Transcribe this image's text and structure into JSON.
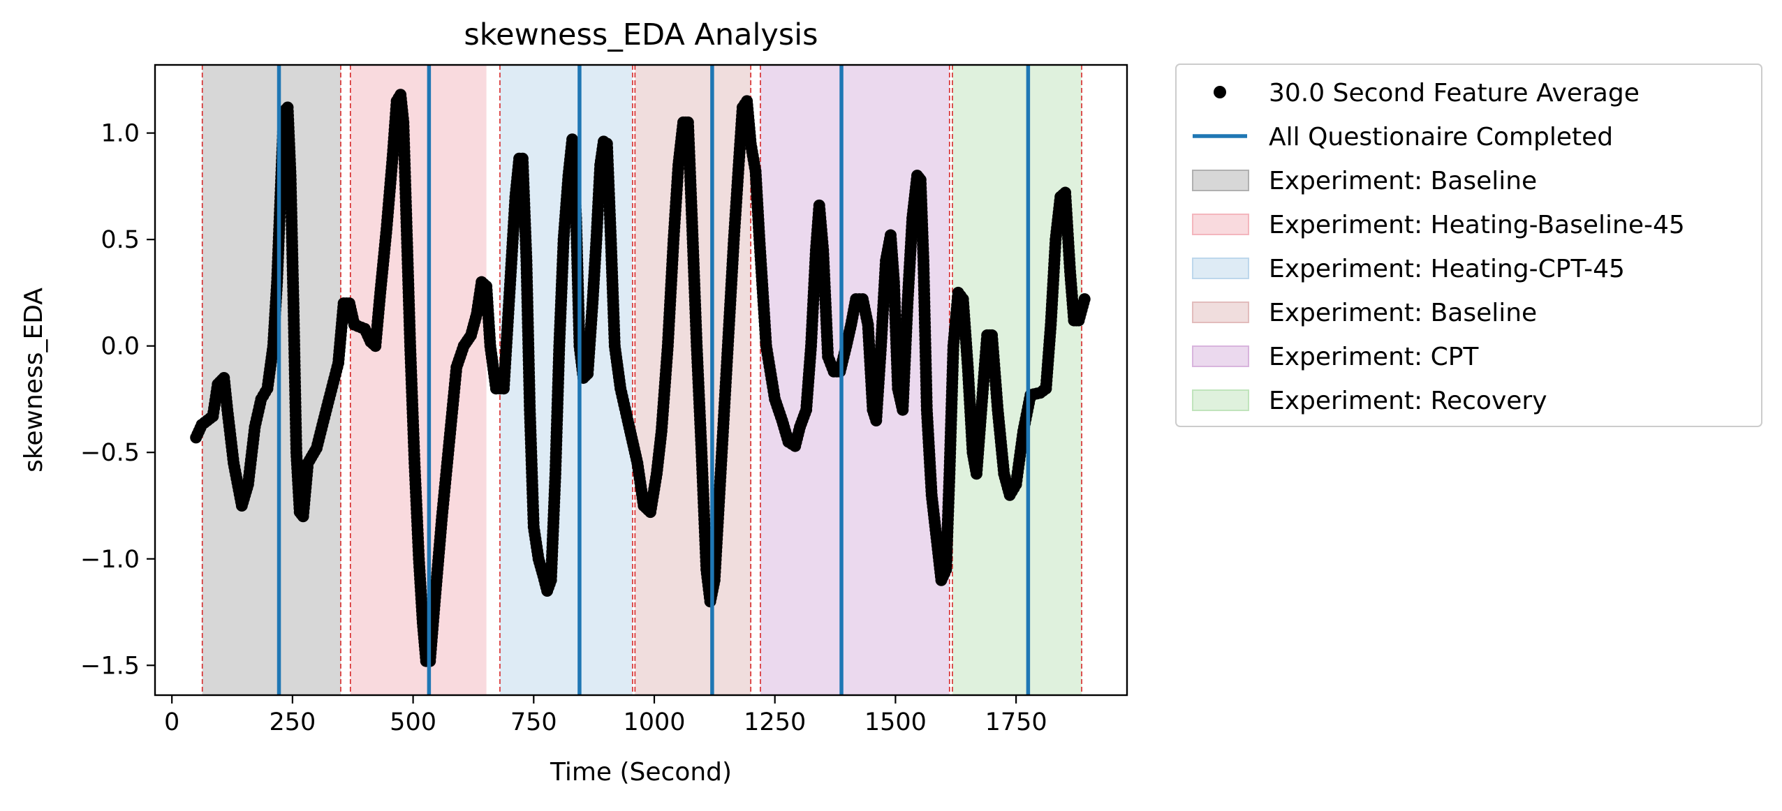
{
  "chart_data": {
    "type": "scatter",
    "title": "skewness_EDA Analysis",
    "xlabel": "Time (Second)",
    "ylabel": "skewness_EDA",
    "xlim": [
      -35,
      1980
    ],
    "ylim": [
      -1.64,
      1.32
    ],
    "xticks": [
      0,
      250,
      500,
      750,
      1000,
      1250,
      1500,
      1750
    ],
    "xtick_labels": [
      "0",
      "250",
      "500",
      "750",
      "1000",
      "1250",
      "1500",
      "1750"
    ],
    "yticks": [
      -1.5,
      -1.0,
      -0.5,
      0.0,
      0.5,
      1.0
    ],
    "ytick_labels": [
      "−1.5",
      "−1.0",
      "−0.5",
      "0.0",
      "0.5",
      "1.0"
    ],
    "grid": false,
    "legend_position": "outside-right",
    "point_color": "#000000",
    "series": [
      {
        "name": "30.0 Second Feature Average",
        "type": "scatter",
        "keypoints": [
          [
            50,
            -0.43
          ],
          [
            62,
            -0.37
          ],
          [
            85,
            -0.33
          ],
          [
            95,
            -0.18
          ],
          [
            108,
            -0.15
          ],
          [
            115,
            -0.3
          ],
          [
            128,
            -0.55
          ],
          [
            145,
            -0.75
          ],
          [
            158,
            -0.65
          ],
          [
            172,
            -0.38
          ],
          [
            185,
            -0.25
          ],
          [
            198,
            -0.2
          ],
          [
            210,
            0.0
          ],
          [
            218,
            0.3
          ],
          [
            225,
            0.7
          ],
          [
            232,
            1.1
          ],
          [
            240,
            1.12
          ],
          [
            246,
            0.8
          ],
          [
            252,
            0.2
          ],
          [
            258,
            -0.5
          ],
          [
            265,
            -0.78
          ],
          [
            272,
            -0.8
          ],
          [
            282,
            -0.55
          ],
          [
            300,
            -0.48
          ],
          [
            320,
            -0.3
          ],
          [
            345,
            -0.08
          ],
          [
            356,
            0.2
          ],
          [
            368,
            0.2
          ],
          [
            378,
            0.1
          ],
          [
            400,
            0.08
          ],
          [
            412,
            0.02
          ],
          [
            422,
            0.0
          ],
          [
            432,
            0.25
          ],
          [
            445,
            0.55
          ],
          [
            458,
            0.9
          ],
          [
            466,
            1.15
          ],
          [
            474,
            1.18
          ],
          [
            480,
            1.05
          ],
          [
            486,
            0.6
          ],
          [
            494,
            0.0
          ],
          [
            503,
            -0.55
          ],
          [
            512,
            -1.0
          ],
          [
            520,
            -1.3
          ],
          [
            527,
            -1.48
          ],
          [
            535,
            -1.48
          ],
          [
            545,
            -1.2
          ],
          [
            560,
            -0.8
          ],
          [
            575,
            -0.45
          ],
          [
            590,
            -0.1
          ],
          [
            605,
            0.0
          ],
          [
            620,
            0.05
          ],
          [
            632,
            0.15
          ],
          [
            642,
            0.3
          ],
          [
            652,
            0.28
          ],
          [
            660,
            0.0
          ],
          [
            672,
            -0.2
          ],
          [
            688,
            -0.2
          ],
          [
            700,
            0.25
          ],
          [
            712,
            0.7
          ],
          [
            720,
            0.88
          ],
          [
            727,
            0.88
          ],
          [
            735,
            0.4
          ],
          [
            742,
            -0.3
          ],
          [
            750,
            -0.85
          ],
          [
            760,
            -1.0
          ],
          [
            770,
            -1.08
          ],
          [
            778,
            -1.15
          ],
          [
            786,
            -1.1
          ],
          [
            795,
            -0.6
          ],
          [
            803,
            0.0
          ],
          [
            812,
            0.5
          ],
          [
            822,
            0.8
          ],
          [
            830,
            0.97
          ],
          [
            838,
            0.6
          ],
          [
            845,
            0.0
          ],
          [
            853,
            -0.15
          ],
          [
            862,
            -0.13
          ],
          [
            872,
            0.2
          ],
          [
            880,
            0.5
          ],
          [
            888,
            0.85
          ],
          [
            895,
            0.96
          ],
          [
            902,
            0.95
          ],
          [
            910,
            0.5
          ],
          [
            918,
            0.0
          ],
          [
            930,
            -0.2
          ],
          [
            945,
            -0.35
          ],
          [
            955,
            -0.45
          ],
          [
            965,
            -0.55
          ],
          [
            978,
            -0.75
          ],
          [
            992,
            -0.78
          ],
          [
            1005,
            -0.6
          ],
          [
            1015,
            -0.4
          ],
          [
            1028,
            0.0
          ],
          [
            1040,
            0.5
          ],
          [
            1050,
            0.85
          ],
          [
            1060,
            1.05
          ],
          [
            1070,
            1.05
          ],
          [
            1078,
            0.6
          ],
          [
            1088,
            0.0
          ],
          [
            1098,
            -0.5
          ],
          [
            1108,
            -1.05
          ],
          [
            1116,
            -1.2
          ],
          [
            1125,
            -1.1
          ],
          [
            1140,
            -0.5
          ],
          [
            1155,
            0.1
          ],
          [
            1165,
            0.5
          ],
          [
            1175,
            0.85
          ],
          [
            1183,
            1.12
          ],
          [
            1192,
            1.15
          ],
          [
            1200,
            0.95
          ],
          [
            1210,
            0.82
          ],
          [
            1218,
            0.5
          ],
          [
            1232,
            0.0
          ],
          [
            1250,
            -0.25
          ],
          [
            1265,
            -0.35
          ],
          [
            1278,
            -0.45
          ],
          [
            1292,
            -0.47
          ],
          [
            1302,
            -0.38
          ],
          [
            1315,
            -0.3
          ],
          [
            1325,
            0.0
          ],
          [
            1335,
            0.45
          ],
          [
            1342,
            0.66
          ],
          [
            1350,
            0.45
          ],
          [
            1360,
            -0.05
          ],
          [
            1372,
            -0.12
          ],
          [
            1385,
            -0.12
          ],
          [
            1398,
            0.0
          ],
          [
            1408,
            0.1
          ],
          [
            1418,
            0.22
          ],
          [
            1432,
            0.22
          ],
          [
            1443,
            0.1
          ],
          [
            1453,
            -0.3
          ],
          [
            1460,
            -0.35
          ],
          [
            1470,
            0.0
          ],
          [
            1480,
            0.4
          ],
          [
            1490,
            0.52
          ],
          [
            1497,
            0.3
          ],
          [
            1505,
            -0.2
          ],
          [
            1515,
            -0.3
          ],
          [
            1525,
            0.2
          ],
          [
            1535,
            0.6
          ],
          [
            1545,
            0.8
          ],
          [
            1552,
            0.78
          ],
          [
            1558,
            0.4
          ],
          [
            1565,
            -0.3
          ],
          [
            1575,
            -0.7
          ],
          [
            1585,
            -0.9
          ],
          [
            1595,
            -1.1
          ],
          [
            1605,
            -1.05
          ],
          [
            1612,
            -0.6
          ],
          [
            1620,
            0.0
          ],
          [
            1630,
            0.25
          ],
          [
            1640,
            0.22
          ],
          [
            1650,
            -0.1
          ],
          [
            1660,
            -0.5
          ],
          [
            1668,
            -0.6
          ],
          [
            1678,
            -0.3
          ],
          [
            1690,
            0.05
          ],
          [
            1700,
            0.05
          ],
          [
            1712,
            -0.3
          ],
          [
            1725,
            -0.6
          ],
          [
            1737,
            -0.7
          ],
          [
            1750,
            -0.65
          ],
          [
            1765,
            -0.4
          ],
          [
            1780,
            -0.23
          ],
          [
            1800,
            -0.22
          ],
          [
            1812,
            -0.2
          ],
          [
            1822,
            0.1
          ],
          [
            1832,
            0.5
          ],
          [
            1842,
            0.7
          ],
          [
            1852,
            0.72
          ],
          [
            1862,
            0.35
          ],
          [
            1870,
            0.12
          ],
          [
            1880,
            0.12
          ],
          [
            1892,
            0.22
          ]
        ]
      },
      {
        "name": "All Questionaire Completed",
        "type": "vline",
        "color": "#1f77b4",
        "x": [
          222,
          533,
          845,
          1120,
          1388,
          1775
        ]
      }
    ],
    "phase_boundaries": [
      63,
      350,
      370,
      680,
      955,
      960,
      1200,
      1220,
      1612,
      1618,
      1886
    ],
    "phase_boundary_color": "#d62728",
    "phases": [
      {
        "name": "Experiment: Baseline",
        "x0": 63,
        "x1": 350,
        "color": "#b0b0b0"
      },
      {
        "name": "Experiment: Heating-Baseline-45",
        "x0": 370,
        "x1": 652,
        "color": "#f4b6bd"
      },
      {
        "name": "Experiment: Heating-CPT-45",
        "x0": 680,
        "x1": 955,
        "color": "#bdd7ec"
      },
      {
        "name": "Experiment: Baseline",
        "x0": 960,
        "x1": 1200,
        "color": "#e2bcbc"
      },
      {
        "name": "Experiment: CPT",
        "x0": 1220,
        "x1": 1612,
        "color": "#d8b4dd"
      },
      {
        "name": "Experiment: Recovery",
        "x0": 1618,
        "x1": 1886,
        "color": "#c0e4bc"
      }
    ],
    "legend": [
      {
        "label": "30.0 Second Feature Average",
        "kind": "marker",
        "color": "#000000"
      },
      {
        "label": "All Questionaire Completed",
        "kind": "line",
        "color": "#1f77b4"
      },
      {
        "label": "Experiment: Baseline",
        "kind": "patch",
        "color": "#b0b0b0"
      },
      {
        "label": "Experiment: Heating-Baseline-45",
        "kind": "patch",
        "color": "#f4b6bd"
      },
      {
        "label": "Experiment: Heating-CPT-45",
        "kind": "patch",
        "color": "#bdd7ec"
      },
      {
        "label": "Experiment: Baseline",
        "kind": "patch",
        "color": "#e2bcbc"
      },
      {
        "label": "Experiment: CPT",
        "kind": "patch",
        "color": "#d8b4dd"
      },
      {
        "label": "Experiment: Recovery",
        "kind": "patch",
        "color": "#c0e4bc"
      }
    ]
  }
}
